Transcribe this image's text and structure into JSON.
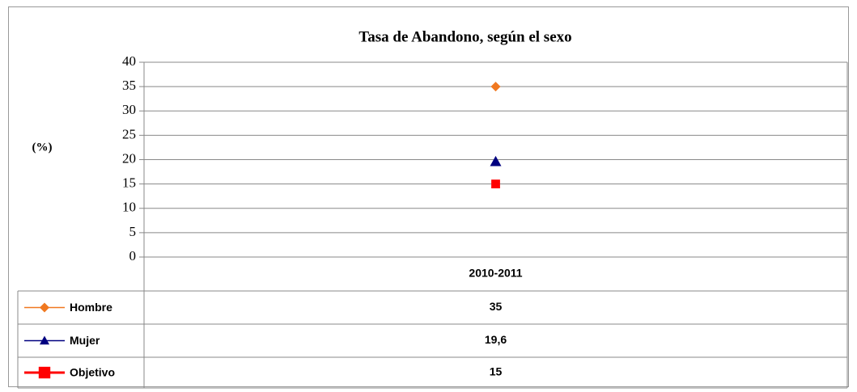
{
  "chart_data": {
    "type": "line",
    "title": "Tasa de Abandono, según el sexo",
    "y_label": "(%)",
    "categories": [
      "2010-2011"
    ],
    "ylim": [
      0,
      40
    ],
    "yticks": [
      0,
      5,
      10,
      15,
      20,
      25,
      30,
      35,
      40
    ],
    "grid": true,
    "series": [
      {
        "name": "Hombre",
        "color": "#f07820",
        "marker": "diamond",
        "values": [
          35
        ]
      },
      {
        "name": "Mujer",
        "color": "#000080",
        "marker": "triangle",
        "values": [
          19.6
        ],
        "value_labels": [
          "19,6"
        ]
      },
      {
        "name": "Objetivo",
        "color": "#ff0000",
        "marker": "square",
        "values": [
          15
        ]
      }
    ]
  }
}
